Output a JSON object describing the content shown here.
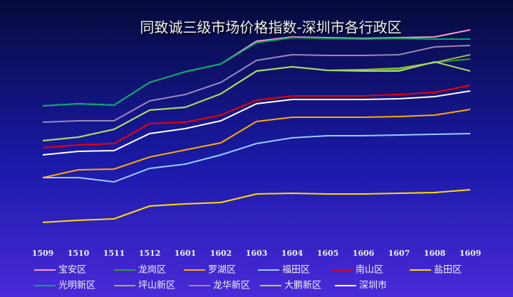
{
  "chart_data": {
    "type": "line",
    "title": "同致诚三级市场价格指数-深圳市各行政区",
    "categories": [
      "1509",
      "1510",
      "1511",
      "1512",
      "1601",
      "1602",
      "1603",
      "1604",
      "1605",
      "1606",
      "1607",
      "1608",
      "1609"
    ],
    "ylim": [
      0,
      320
    ],
    "series": [
      {
        "name": "宝安区",
        "color": "#ff99cc",
        "values": [
          201,
          204,
          202,
          234,
          249,
          260,
          292,
          298,
          297,
          296,
          297,
          298,
          308
        ]
      },
      {
        "name": "龙岗区",
        "color": "#339933",
        "values": [
          152,
          157,
          168,
          195,
          199,
          218,
          250,
          256,
          251,
          251,
          252,
          262,
          267
        ]
      },
      {
        "name": "罗湖区",
        "color": "#ffaa00",
        "values": [
          100,
          111,
          112,
          129,
          139,
          149,
          179,
          185,
          185,
          185,
          186,
          188,
          196
        ]
      },
      {
        "name": "福田区",
        "color": "#99ccff",
        "values": [
          100,
          100,
          94,
          113,
          119,
          132,
          148,
          156,
          159,
          159,
          160,
          161,
          162
        ]
      },
      {
        "name": "南山区",
        "color": "#ee0000",
        "values": [
          142,
          146,
          148,
          176,
          178,
          188,
          209,
          215,
          215,
          215,
          217,
          220,
          230
        ]
      },
      {
        "name": "盐田区",
        "color": "#ffdd00",
        "values": [
          37,
          40,
          42,
          60,
          63,
          65,
          77,
          78,
          77,
          77,
          78,
          79,
          83
        ]
      },
      {
        "name": "光明新区",
        "color": "#00aa66",
        "values": [
          201,
          204,
          202,
          234,
          249,
          260,
          290,
          297,
          296,
          295,
          296,
          295,
          295
        ]
      },
      {
        "name": "坪山新区",
        "color": "#99bb44",
        "values": [
          152,
          157,
          168,
          195,
          199,
          218,
          250,
          256,
          251,
          252,
          254,
          262,
          273
        ]
      },
      {
        "name": "龙华新区",
        "color": "#9988bb",
        "values": [
          178,
          180,
          180,
          208,
          217,
          234,
          265,
          273,
          272,
          272,
          273,
          284,
          286
        ]
      },
      {
        "name": "大鹏新区",
        "color": "#aadd66",
        "values": [
          152,
          157,
          168,
          195,
          199,
          218,
          250,
          256,
          251,
          250,
          250,
          263,
          250
        ]
      },
      {
        "name": "深圳市",
        "color": "#ffffff",
        "values": [
          132,
          137,
          138,
          162,
          169,
          180,
          204,
          210,
          210,
          210,
          211,
          214,
          222
        ]
      }
    ]
  }
}
